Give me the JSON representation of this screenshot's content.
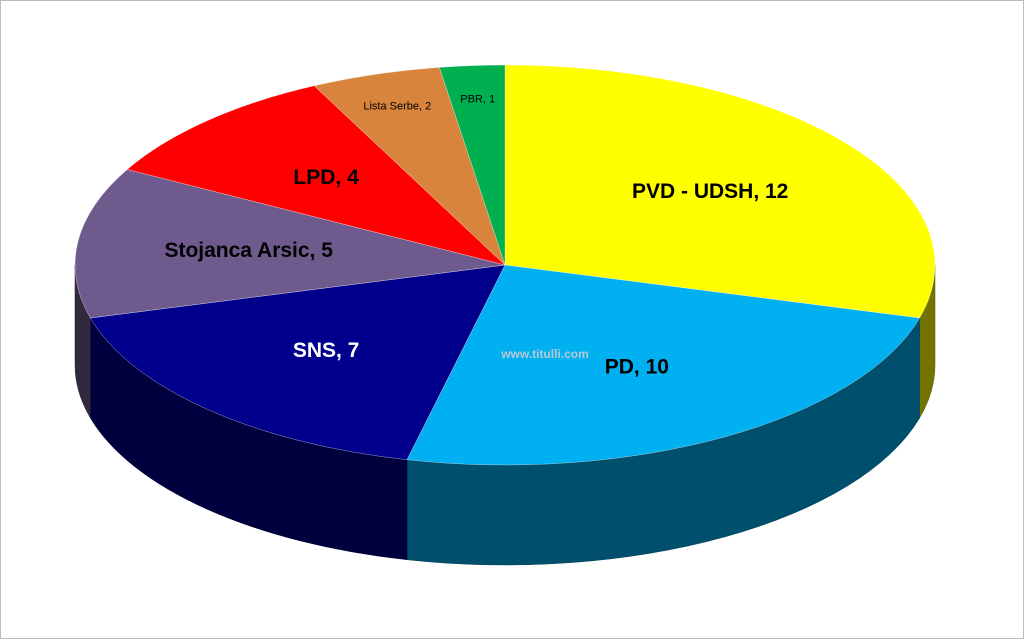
{
  "chart_data": {
    "type": "pie",
    "values": [
      12,
      10,
      7,
      5,
      4,
      2,
      1
    ],
    "value_labels": [
      "PVD - UDSH, 12",
      "PD, 10",
      "SNS, 7",
      "Stojanca Arsic, 5",
      "LPD, 4",
      "Lista Serbe, 2",
      "PBR, 1"
    ],
    "colors": [
      "#ffff00",
      "#00b0f0",
      "#00008c",
      "#6e5a8c",
      "#ff0000",
      "#d8843c",
      "#00b050"
    ],
    "label_colors": [
      "#000000",
      "#000000",
      "#ffffff",
      "#000000",
      "#000000",
      "#000000",
      "#000000"
    ],
    "watermark": "www.titulli.com"
  }
}
